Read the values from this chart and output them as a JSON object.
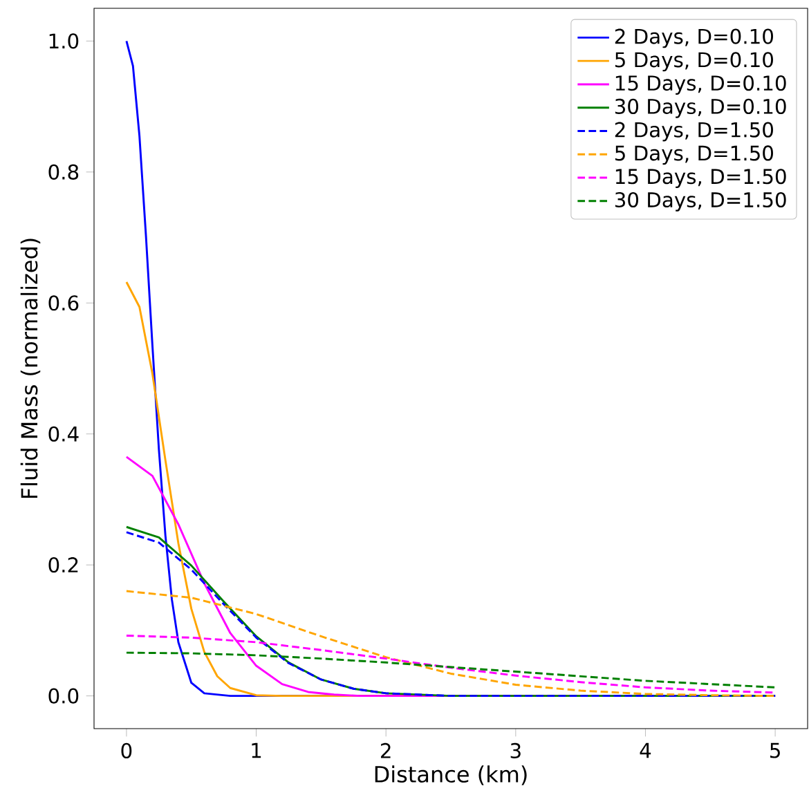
{
  "chart_data": {
    "type": "line",
    "xlabel": "Distance (km)",
    "ylabel": "Fluid Mass (normalized)",
    "xlim": [
      -0.25,
      5.25
    ],
    "ylim": [
      -0.05,
      1.05
    ],
    "xticks": [
      0,
      1,
      2,
      3,
      4,
      5
    ],
    "yticks": [
      {
        "value": 0,
        "label": "0.0"
      },
      {
        "value": 0.2,
        "label": "0.2"
      },
      {
        "value": 0.4,
        "label": "0.4"
      },
      {
        "value": 0.6,
        "label": "0.6"
      },
      {
        "value": 0.8,
        "label": "0.8"
      },
      {
        "value": 1.0,
        "label": "1.0"
      }
    ],
    "legend": "top right",
    "grid": false,
    "marker": "none",
    "series": [
      {
        "name": "2 Days, D=0.10",
        "color": "#0000ff",
        "line_style": "solid",
        "x": [
          0,
          0.05,
          0.1,
          0.15,
          0.2,
          0.25,
          0.3,
          0.35,
          0.4,
          0.5,
          0.6,
          0.8,
          1,
          2,
          3,
          4,
          5
        ],
        "values": [
          1.0,
          0.962,
          0.855,
          0.703,
          0.535,
          0.376,
          0.245,
          0.147,
          0.082,
          0.02,
          0.004,
          0,
          0,
          0,
          0,
          0,
          0
        ]
      },
      {
        "name": "5 Days, D=0.10",
        "color": "#ffa500",
        "line_style": "solid",
        "x": [
          0,
          0.1,
          0.2,
          0.3,
          0.4,
          0.5,
          0.6,
          0.7,
          0.8,
          1.0,
          1.2,
          1.5,
          2,
          3,
          4,
          5
        ],
        "values": [
          0.632,
          0.594,
          0.492,
          0.36,
          0.233,
          0.133,
          0.067,
          0.03,
          0.012,
          0.001,
          0,
          0,
          0,
          0,
          0,
          0
        ]
      },
      {
        "name": "15 Days, D=0.10",
        "color": "#ff00ff",
        "line_style": "solid",
        "x": [
          0,
          0.2,
          0.4,
          0.6,
          0.8,
          1.0,
          1.2,
          1.4,
          1.6,
          1.8,
          2,
          2.5,
          3,
          4,
          5
        ],
        "values": [
          0.365,
          0.336,
          0.262,
          0.172,
          0.096,
          0.046,
          0.018,
          0.006,
          0.002,
          0,
          0,
          0,
          0,
          0,
          0
        ]
      },
      {
        "name": "30 Days, D=0.10",
        "color": "#008000",
        "line_style": "solid",
        "x": [
          0,
          0.25,
          0.5,
          0.75,
          1,
          1.25,
          1.5,
          1.75,
          2,
          2.5,
          3,
          3.5,
          4,
          5
        ],
        "values": [
          0.258,
          0.242,
          0.199,
          0.144,
          0.091,
          0.051,
          0.025,
          0.011,
          0.004,
          0,
          0,
          0,
          0,
          0
        ]
      },
      {
        "name": "2 Days, D=1.50",
        "color": "#0000ff",
        "line_style": "dashed",
        "x": [
          0,
          0.25,
          0.5,
          0.75,
          1,
          1.25,
          1.5,
          1.75,
          2,
          2.5,
          3,
          3.5,
          4,
          5
        ],
        "values": [
          0.25,
          0.234,
          0.193,
          0.14,
          0.089,
          0.05,
          0.025,
          0.011,
          0.004,
          0,
          0,
          0,
          0,
          0
        ]
      },
      {
        "name": "5 Days, D=1.50",
        "color": "#ffa500",
        "line_style": "dashed",
        "x": [
          0,
          0.5,
          1,
          1.5,
          2,
          2.5,
          3,
          3.5,
          4,
          4.5,
          5
        ],
        "values": [
          0.16,
          0.15,
          0.125,
          0.091,
          0.059,
          0.034,
          0.017,
          0.008,
          0.003,
          0.001,
          0
        ]
      },
      {
        "name": "15 Days, D=1.50",
        "color": "#ff00ff",
        "line_style": "dashed",
        "x": [
          0,
          0.5,
          1,
          1.5,
          2,
          2.5,
          3,
          3.5,
          4,
          4.5,
          5
        ],
        "values": [
          0.092,
          0.089,
          0.082,
          0.07,
          0.057,
          0.043,
          0.031,
          0.021,
          0.013,
          0.008,
          0.005
        ]
      },
      {
        "name": "30 Days, D=1.50",
        "color": "#008000",
        "line_style": "dashed",
        "x": [
          0,
          0.5,
          1,
          1.5,
          2,
          2.5,
          3,
          3.5,
          4,
          4.5,
          5
        ],
        "values": [
          0.066,
          0.065,
          0.062,
          0.057,
          0.051,
          0.044,
          0.037,
          0.03,
          0.023,
          0.018,
          0.013
        ]
      }
    ]
  }
}
